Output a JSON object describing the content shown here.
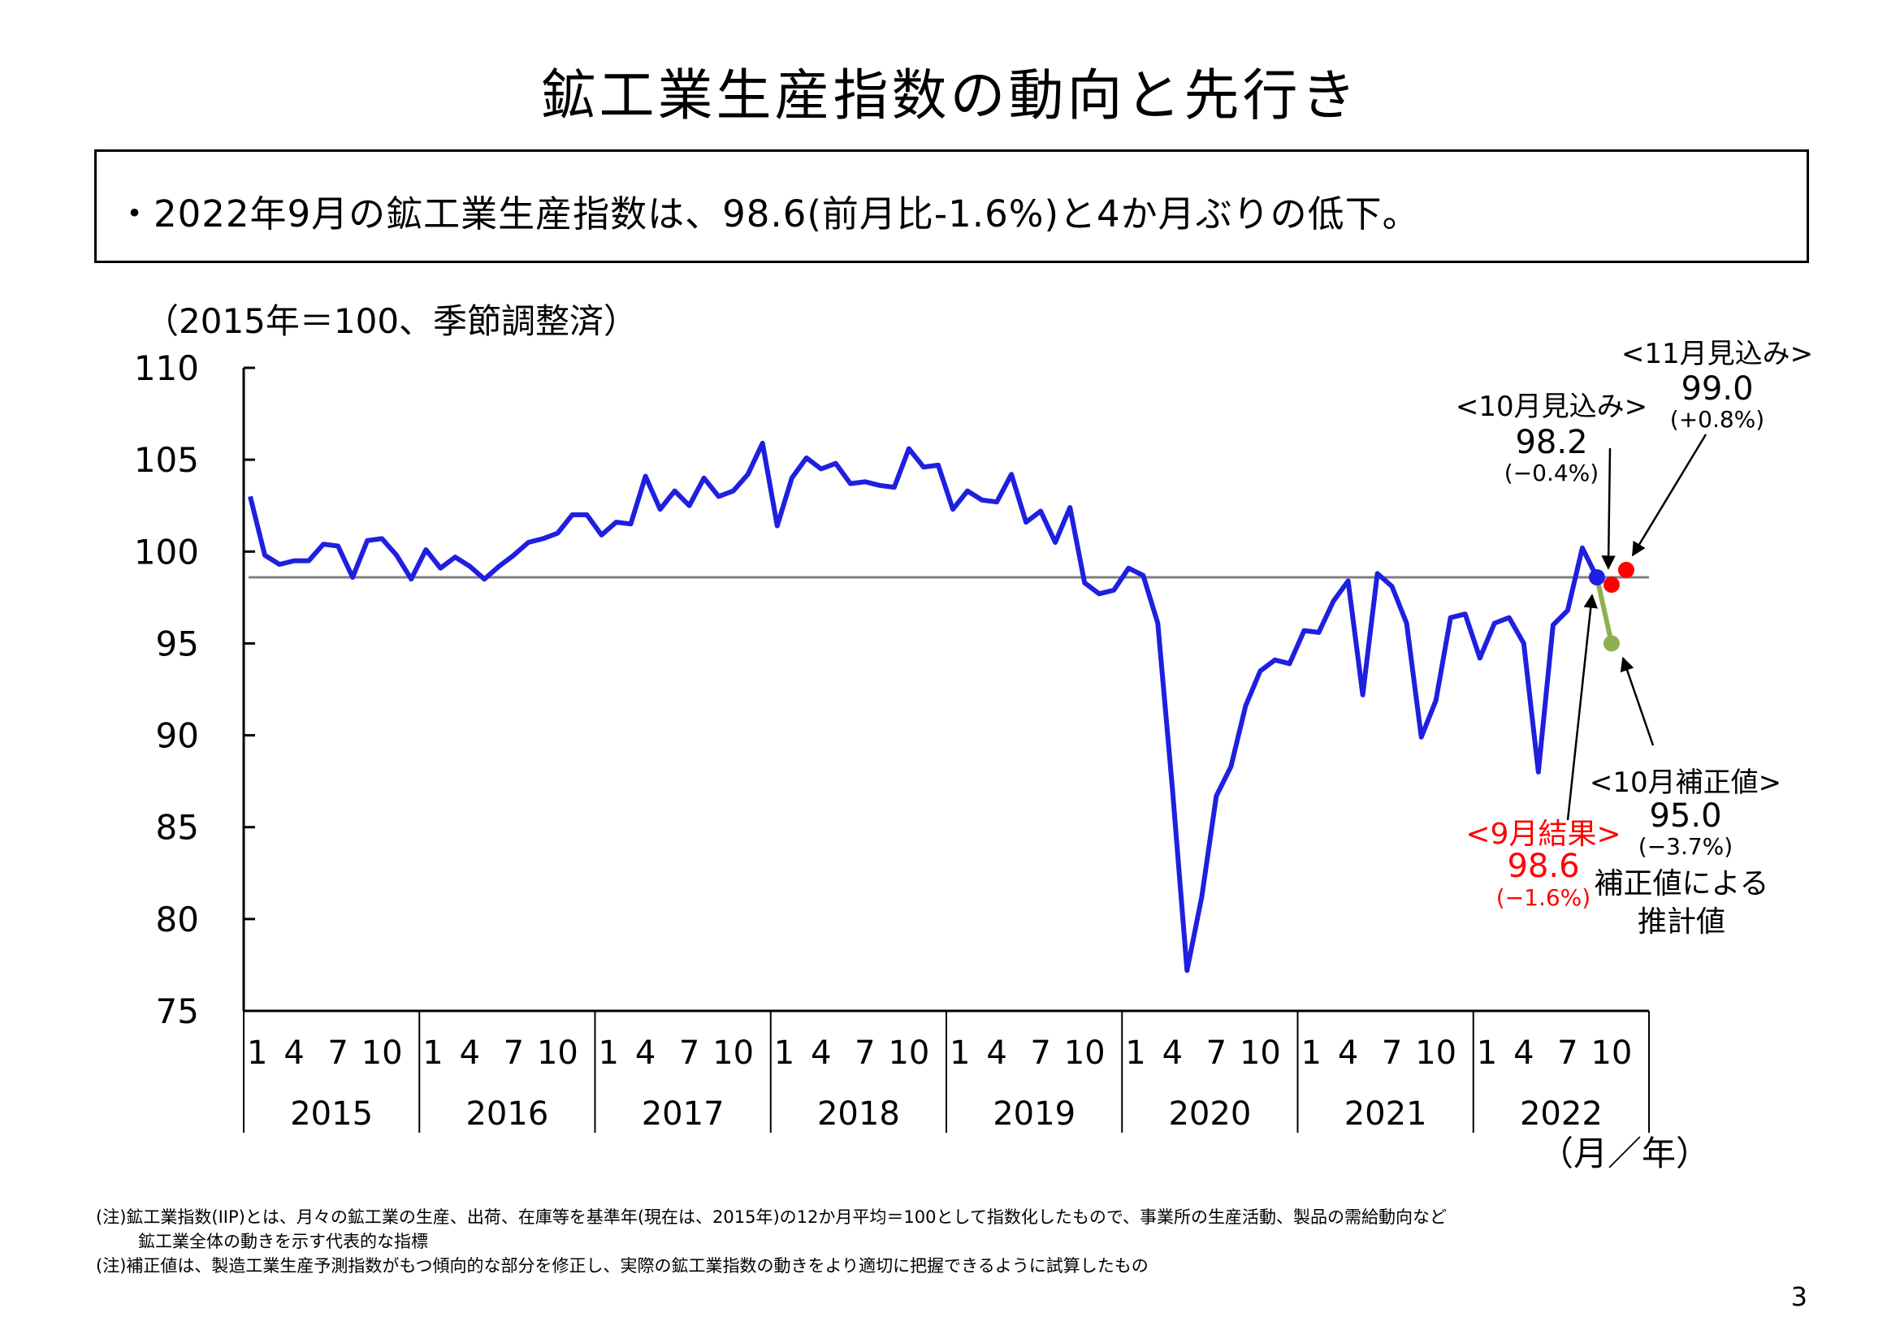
{
  "page": {
    "title": "鉱工業生産指数の動向と先行き",
    "summary": "・2022年9月の鉱工業生産指数は、98.6(前月比-1.6%)と4か月ぶりの低下。",
    "unit_label": "（2015年＝100、季節調整済）",
    "notes": [
      "(注)鉱工業指数(IIP)とは、月々の鉱工業の生産、出荷、在庫等を基準年(現在は、2015年)の12か月平均＝100として指数化したもので、事業所の生産活動、製品の需給動向など",
      "鉱工業全体の動きを示す代表的な指標",
      "(注)補正値は、製造工業生産予測指数がもつ傾向的な部分を修正し、実際の鉱工業指数の動きをより適切に把握できるように試算したもの"
    ],
    "page_number": "3"
  },
  "chart_data": {
    "type": "line",
    "ylim": [
      75,
      110
    ],
    "yticks": [
      "110",
      "105",
      "100",
      "95",
      "90",
      "85",
      "80",
      "75"
    ],
    "month_ticks": [
      "1",
      "4",
      "7",
      "10"
    ],
    "years": [
      "2015",
      "2016",
      "2017",
      "2018",
      "2019",
      "2020",
      "2021",
      "2022"
    ],
    "axis_unit": "（月／年）",
    "reference_value": 98.6,
    "series": [
      {
        "color": "#1f1fe0",
        "start": "2015-01",
        "values": [
          103.0,
          99.8,
          99.3,
          99.5,
          99.5,
          100.4,
          100.3,
          98.6,
          100.6,
          100.7,
          99.8,
          98.5,
          100.1,
          99.1,
          99.7,
          99.2,
          98.5,
          99.2,
          99.8,
          100.5,
          100.7,
          101.0,
          102.0,
          102.0,
          100.9,
          101.6,
          101.5,
          104.1,
          102.3,
          103.3,
          102.5,
          104.0,
          103.0,
          103.3,
          104.2,
          105.9,
          101.4,
          104.0,
          105.1,
          104.5,
          104.8,
          103.7,
          103.8,
          103.6,
          103.5,
          105.6,
          104.6,
          104.7,
          102.3,
          103.3,
          102.8,
          102.7,
          104.2,
          101.6,
          102.2,
          100.5,
          102.4,
          98.3,
          97.7,
          97.9,
          99.1,
          98.7,
          96.1,
          87.1,
          77.2,
          81.2,
          86.7,
          88.3,
          91.6,
          93.5,
          94.1,
          93.9,
          95.7,
          95.6,
          97.3,
          98.4,
          92.2,
          98.8,
          98.1,
          96.1,
          89.9,
          91.9,
          96.4,
          96.6,
          94.2,
          96.1,
          96.4,
          95.0,
          88.0,
          96.0,
          96.8,
          100.2,
          98.6
        ]
      }
    ],
    "points": [
      {
        "label": "9月結果",
        "value": "98.6",
        "change": "(−1.6%)",
        "color": "#1f1fe0",
        "text_color": "#ff0000"
      },
      {
        "label": "10月見込み",
        "value": "98.2",
        "change": "(−0.4%)",
        "color": "#ff0000",
        "text_color": "#000000"
      },
      {
        "label": "11月見込み",
        "value": "99.0",
        "change": "(+0.8%)",
        "color": "#ff0000",
        "text_color": "#000000"
      },
      {
        "label": "10月補正値",
        "value": "95.0",
        "change": "(−3.7%)",
        "color": "#8fb050",
        "text_color": "#000000",
        "note_lines": [
          "補正値による",
          "推計値"
        ]
      }
    ],
    "forecast_values": {
      "oct": 98.2,
      "nov": 99.0,
      "oct_corrected": 95.0
    }
  }
}
